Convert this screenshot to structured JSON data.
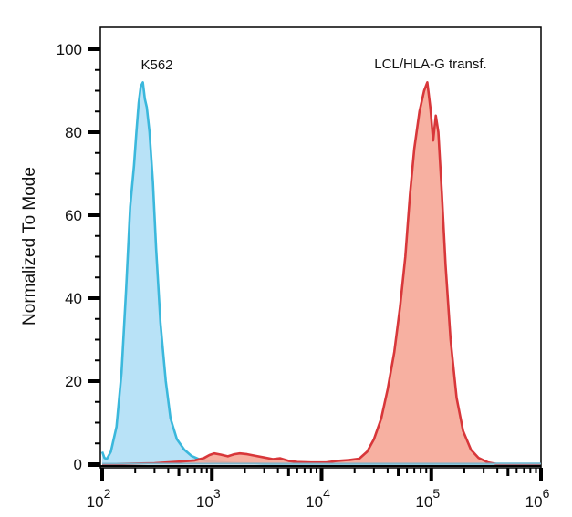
{
  "chart_data": {
    "type": "area",
    "title": "",
    "xlabel": "",
    "ylabel": "Normalized To Mode",
    "xscale": "log",
    "xlim": [
      100,
      1000000
    ],
    "ylim": [
      0,
      100
    ],
    "grid": false,
    "legend": "none",
    "x_ticks": [
      {
        "value": 100,
        "base": "10",
        "exp": "2"
      },
      {
        "value": 1000,
        "base": "10",
        "exp": "3"
      },
      {
        "value": 10000,
        "base": "10",
        "exp": "4"
      },
      {
        "value": 100000,
        "base": "10",
        "exp": "5"
      },
      {
        "value": 1000000,
        "base": "10",
        "exp": "6"
      }
    ],
    "y_ticks": [
      "0",
      "20",
      "40",
      "60",
      "80",
      "100"
    ],
    "annotations": [
      {
        "text": "K562",
        "series": "K562"
      },
      {
        "text": "LCL/HLA-G transf.",
        "series": "LCL/HLA-G transf."
      }
    ],
    "series": [
      {
        "name": "K562",
        "line_color": "#3bb8dc",
        "fill_color": "#b8e2f7",
        "points": [
          [
            100,
            3
          ],
          [
            105,
            1.5
          ],
          [
            110,
            1.2
          ],
          [
            120,
            3
          ],
          [
            135,
            9
          ],
          [
            150,
            22
          ],
          [
            165,
            42
          ],
          [
            180,
            62
          ],
          [
            195,
            72
          ],
          [
            205,
            80
          ],
          [
            215,
            87
          ],
          [
            225,
            91
          ],
          [
            235,
            92
          ],
          [
            245,
            88
          ],
          [
            255,
            86
          ],
          [
            270,
            80
          ],
          [
            290,
            68
          ],
          [
            310,
            52
          ],
          [
            340,
            34
          ],
          [
            380,
            20
          ],
          [
            420,
            11
          ],
          [
            480,
            6
          ],
          [
            560,
            3.5
          ],
          [
            650,
            2
          ],
          [
            760,
            1.2
          ],
          [
            900,
            0.8
          ],
          [
            1100,
            0.5
          ],
          [
            1500,
            0.3
          ],
          [
            3000,
            0.1
          ],
          [
            10000,
            0.1
          ],
          [
            100000,
            0.1
          ],
          [
            1000000,
            0.1
          ]
        ]
      },
      {
        "name": "LCL/HLA-G transf.",
        "line_color": "#d8373a",
        "fill_color": "#f6a797",
        "points": [
          [
            100,
            0
          ],
          [
            300,
            0.2
          ],
          [
            500,
            0.6
          ],
          [
            700,
            0.9
          ],
          [
            850,
            1.5
          ],
          [
            950,
            2.2
          ],
          [
            1050,
            2.6
          ],
          [
            1200,
            2.3
          ],
          [
            1400,
            1.9
          ],
          [
            1600,
            2.4
          ],
          [
            1800,
            2.6
          ],
          [
            2100,
            2.4
          ],
          [
            2500,
            2.0
          ],
          [
            3000,
            1.6
          ],
          [
            3600,
            1.2
          ],
          [
            4200,
            1.4
          ],
          [
            5000,
            0.8
          ],
          [
            6000,
            0.5
          ],
          [
            8000,
            0.4
          ],
          [
            11000,
            0.4
          ],
          [
            14000,
            0.8
          ],
          [
            18000,
            1.0
          ],
          [
            22000,
            1.3
          ],
          [
            26000,
            3
          ],
          [
            30000,
            6
          ],
          [
            35000,
            11
          ],
          [
            40000,
            18
          ],
          [
            46000,
            27
          ],
          [
            52000,
            38
          ],
          [
            58000,
            50
          ],
          [
            64000,
            65
          ],
          [
            70000,
            76
          ],
          [
            78000,
            85
          ],
          [
            86000,
            90
          ],
          [
            92000,
            92
          ],
          [
            98000,
            86
          ],
          [
            104000,
            78
          ],
          [
            110000,
            84
          ],
          [
            116000,
            80
          ],
          [
            125000,
            65
          ],
          [
            135000,
            48
          ],
          [
            150000,
            30
          ],
          [
            170000,
            16
          ],
          [
            195000,
            8
          ],
          [
            230000,
            3.5
          ],
          [
            270000,
            1.5
          ],
          [
            330000,
            0.4
          ],
          [
            400000,
            0
          ],
          [
            1000000,
            0
          ]
        ]
      }
    ]
  }
}
